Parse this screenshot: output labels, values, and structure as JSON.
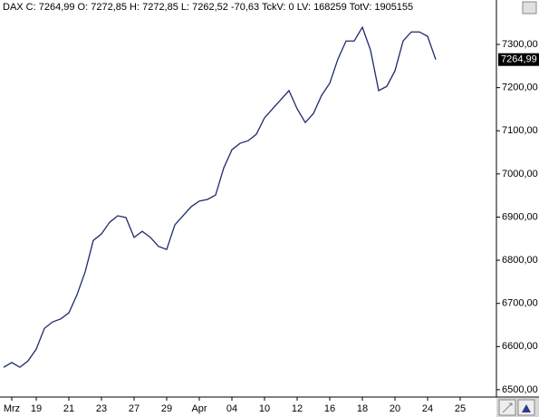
{
  "header": {
    "text": "DAX C: 7264,99 O: 7272,85 H: 7272,85 L: 7262,52 -70,63 TckV: 0 LV: 168259 TotV: 1905155"
  },
  "chart_data": {
    "type": "line",
    "categories": [
      null,
      "Mrz",
      null,
      null,
      "19",
      null,
      null,
      null,
      "21",
      null,
      null,
      null,
      "23",
      null,
      null,
      null,
      "27",
      null,
      null,
      null,
      "29",
      null,
      null,
      null,
      "Apr",
      null,
      null,
      null,
      "04",
      null,
      null,
      null,
      "10",
      null,
      null,
      null,
      "12",
      null,
      null,
      null,
      "16",
      null,
      null,
      null,
      "18",
      null,
      null,
      null,
      "20",
      null,
      null,
      null,
      "24",
      null,
      null,
      null,
      "25",
      null,
      null,
      null,
      null
    ],
    "series": [
      {
        "name": "DAX",
        "color": "#1f2a6b",
        "values": [
          6552,
          6563,
          6552,
          6567,
          6594,
          6642,
          6657,
          6664,
          6678,
          6720,
          6773,
          6846,
          6861,
          6888,
          6903,
          6899,
          6853,
          6867,
          6853,
          6832,
          6825,
          6882,
          6903,
          6924,
          6937,
          6941,
          6951,
          7014,
          7056,
          7071,
          7077,
          7092,
          7130,
          7151,
          7172,
          7193,
          7151,
          7119,
          7140,
          7182,
          7210,
          7266,
          7308,
          7308,
          7340,
          7287,
          7193,
          7203,
          7239,
          7308,
          7329,
          7329,
          7319,
          7265,
          null,
          null,
          null,
          null,
          null,
          null,
          null
        ]
      }
    ],
    "last_price": {
      "value": 7264.99,
      "label": "7264,99"
    },
    "ylim": [
      6483,
      7403
    ],
    "yticks": [
      {
        "value": 6500,
        "label": "6500,00"
      },
      {
        "value": 6600,
        "label": "6600,00"
      },
      {
        "value": 6700,
        "label": "6700,00"
      },
      {
        "value": 6800,
        "label": "6800,00"
      },
      {
        "value": 6900,
        "label": "6900,00"
      },
      {
        "value": 7000,
        "label": "7000,00"
      },
      {
        "value": 7100,
        "label": "7100,00"
      },
      {
        "value": 7200,
        "label": "7200,00"
      },
      {
        "value": 7300,
        "label": "7300,00"
      }
    ],
    "grid": false
  }
}
